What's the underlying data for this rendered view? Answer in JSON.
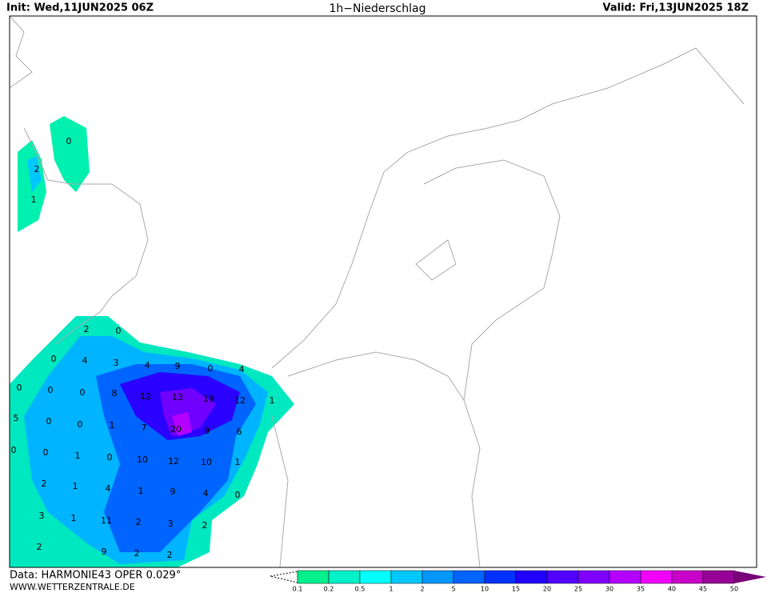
{
  "header": {
    "init": "Init: Wed,11JUN2025 06Z",
    "title": "1h−Niederschlag",
    "valid": "Valid: Fri,13JUN2025 18Z"
  },
  "footer": {
    "data": "Data: HARMONIE43 OPER 0.029°",
    "site": "WWW.WETTERZENTRALE.DE"
  },
  "map_labels": [
    0,
    2,
    1,
    0,
    2,
    0,
    4,
    3,
    4,
    9,
    0,
    4,
    0,
    0,
    0,
    8,
    12,
    13,
    19,
    12,
    1,
    5,
    0,
    0,
    1,
    7,
    20,
    9,
    6,
    0,
    0,
    1,
    0,
    10,
    12,
    10,
    1,
    2,
    1,
    4,
    1,
    9,
    4,
    0,
    3,
    1,
    11,
    2,
    3,
    2,
    2,
    9,
    2,
    2
  ],
  "legend": {
    "ticks": [
      0.1,
      0.2,
      0.5,
      1,
      2,
      5,
      10,
      15,
      20,
      25,
      30,
      35,
      40,
      45,
      50
    ],
    "colors": [
      "#00f08c",
      "#00f0c8",
      "#00ffff",
      "#00c8ff",
      "#0096ff",
      "#0064ff",
      "#0032ff",
      "#2000ff",
      "#5000ff",
      "#8000ff",
      "#b400ff",
      "#f000ff",
      "#c800c8",
      "#960096",
      "#780078"
    ]
  }
}
